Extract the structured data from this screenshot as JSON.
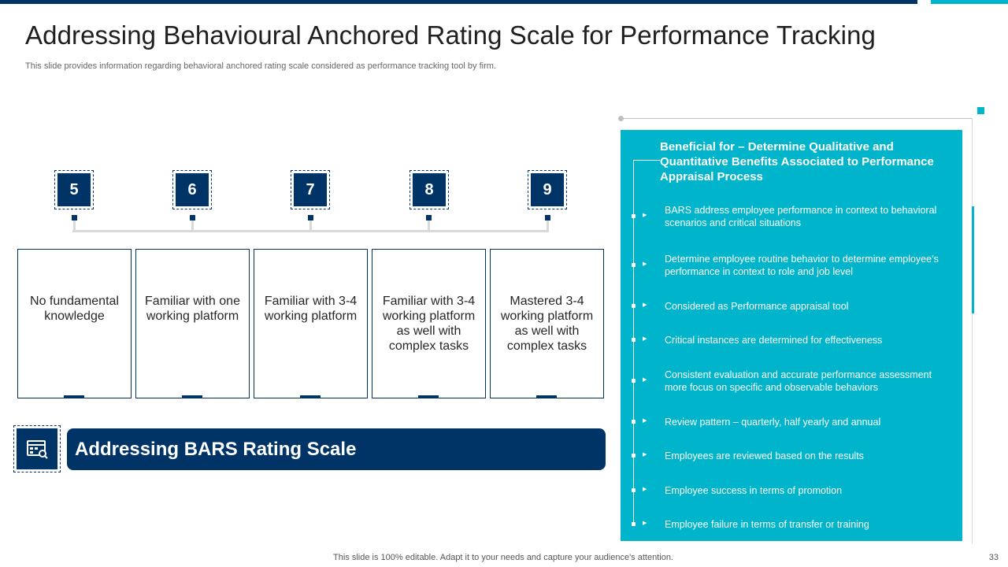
{
  "slide": {
    "title": "Addressing Behavioural Anchored Rating Scale for Performance Tracking",
    "subtitle": "This slide provides information regarding behavioral anchored rating scale considered as performance tracking tool by firm."
  },
  "scale": {
    "levels": [
      {
        "number": "5",
        "description": "No fundamental knowledge"
      },
      {
        "number": "6",
        "description": "Familiar with one working platform"
      },
      {
        "number": "7",
        "description": "Familiar with 3-4 working platform"
      },
      {
        "number": "8",
        "description": "Familiar with 3-4 working platform as well with complex tasks"
      },
      {
        "number": "9",
        "description": "Mastered 3-4 working platform as well with complex tasks"
      }
    ]
  },
  "banner": {
    "icon": "rating-scale-icon",
    "label": "Addressing BARS Rating Scale"
  },
  "benefits": {
    "heading": "Beneficial for – Determine Qualitative and Quantitative Benefits Associated to Performance Appraisal Process",
    "items": [
      "BARS address employee performance in context to behavioral scenarios and critical situations",
      "Determine employee routine behavior to determine employee’s performance in context to role and job level",
      "Considered as Performance appraisal tool",
      "Critical instances are determined for effectiveness",
      "Consistent evaluation and accurate performance assessment more focus on specific and observable behaviors",
      "Review pattern – quarterly, half yearly and annual",
      "Employees are reviewed based on the results",
      "Employee success in terms of promotion",
      "Employee failure in terms of transfer or training"
    ]
  },
  "footer": {
    "note": "This slide is 100% editable. Adapt it to your needs and capture your audience's attention.",
    "page_number": "33"
  },
  "colors": {
    "navy": "#003366",
    "teal": "#00b4cc"
  }
}
